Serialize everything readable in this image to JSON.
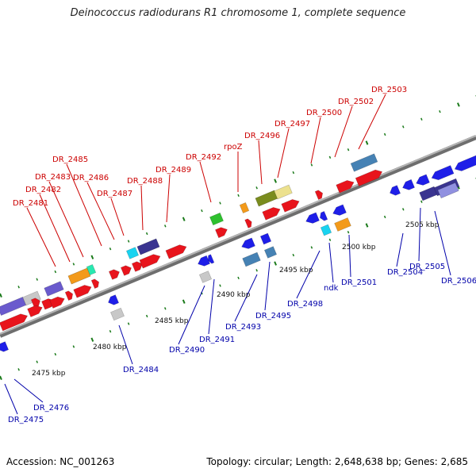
{
  "title": "Deinococcus radiodurans R1 chromosome 1, complete sequence",
  "footer": {
    "accession": "Accession: NC_001263",
    "summary": "Topology: circular; Length: 2,648,638 bp; Genes: 2,685"
  },
  "colors": {
    "forward_label": "#cc0000",
    "reverse_label": "#0000aa",
    "backbone": "#8c8c8c",
    "tick": "#1a7a1a"
  },
  "chart_data": {
    "type": "genome-map",
    "scale_labels": [
      {
        "pos": 2475,
        "text": "2475 kbp"
      },
      {
        "pos": 2480,
        "text": "2480 kbp"
      },
      {
        "pos": 2485,
        "text": "2485 kbp"
      },
      {
        "pos": 2490,
        "text": "2490 kbp"
      },
      {
        "pos": 2495,
        "text": "2495 kbp"
      },
      {
        "pos": 2500,
        "text": "2500 kbp"
      },
      {
        "pos": 2505,
        "text": "2505 kbp"
      }
    ],
    "forward_genes": [
      "DR_2481",
      "DR_2482",
      "DR_2483",
      "DR_2485",
      "DR_2486",
      "DR_2487",
      "DR_2488",
      "DR_2489",
      "DR_2492",
      "rpoZ",
      "DR_2496",
      "DR_2497",
      "DR_2500",
      "DR_2502",
      "DR_2503"
    ],
    "reverse_genes": [
      "DR_2475",
      "DR_2476",
      "DR_2484",
      "DR_2490",
      "DR_2491",
      "DR_2493",
      "DR_2495",
      "DR_2498",
      "ndk",
      "DR_2501",
      "DR_2504",
      "DR_2505",
      "DR_2506"
    ]
  }
}
